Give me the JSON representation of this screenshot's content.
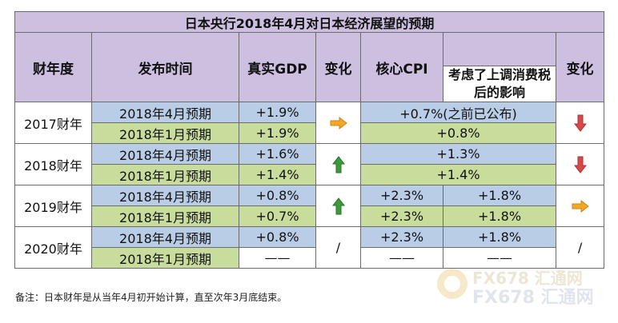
{
  "title": "日本央行2018年4月对日本经济展望的预期",
  "headers": {
    "fiscal_year": "财年度",
    "release_time": "发布时间",
    "real_gdp": "真实GDP",
    "change_gdp": "变化",
    "core_cpi": "核心CPI",
    "tax_effect": "考虑了上调消费税后的影响",
    "change_cpi": "变化"
  },
  "rows": {
    "fy2017": {
      "year": "2017财年",
      "apr": {
        "time": "2018年4月预期",
        "gdp": "+1.9%",
        "cpi": "+0.7%(之前已公布)"
      },
      "jan": {
        "time": "2018年1月预期",
        "gdp": "+1.9%",
        "cpi": "+0.8%"
      },
      "gdp_change": "right-arrow-icon",
      "cpi_change": "down-arrow-icon"
    },
    "fy2018": {
      "year": "2018财年",
      "apr": {
        "time": "2018年4月预期",
        "gdp": "+1.6%",
        "cpi": "+1.3%"
      },
      "jan": {
        "time": "2018年1月预期",
        "gdp": "+1.4%",
        "cpi": "+1.4%"
      },
      "gdp_change": "up-arrow-icon",
      "cpi_change": "down-arrow-icon"
    },
    "fy2019": {
      "year": "2019财年",
      "apr": {
        "time": "2018年4月预期",
        "gdp": "+0.8%",
        "cpi": "+2.3%",
        "tax": "+1.8%"
      },
      "jan": {
        "time": "2018年1月预期",
        "gdp": "+0.7%",
        "cpi": "+2.3%",
        "tax": "+1.8%"
      },
      "gdp_change": "up-arrow-icon",
      "cpi_change": "right-arrow-icon"
    },
    "fy2020": {
      "year": "2020财年",
      "apr": {
        "time": "2018年4月预期",
        "gdp": "+0.8%",
        "cpi": "+2.3%",
        "tax": "+1.8%"
      },
      "jan": {
        "time": "2018年1月预期",
        "gdp": "——",
        "cpi": "——",
        "tax": "——"
      },
      "gdp_change": "/",
      "cpi_change": "/"
    }
  },
  "note": "备注：日本财年是从当年4月初开始计算，直至次年3月底结束。",
  "watermark": {
    "line1": "FX678 汇通网",
    "line2": "FX678 汇通网"
  },
  "colors": {
    "header_bg": "#cdbfe0",
    "apr_row_bg": "#b9cde6",
    "jan_row_bg": "#c8dc9c",
    "arrow_right": "#f5a623",
    "arrow_up": "#3c9a3c",
    "arrow_down": "#d94848"
  }
}
